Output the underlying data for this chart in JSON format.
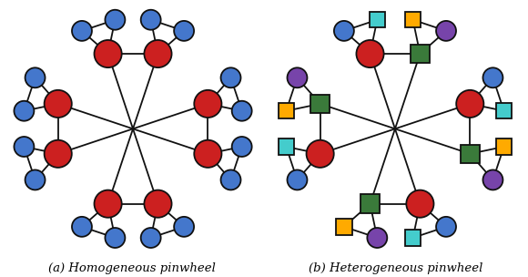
{
  "fig_width": 5.8,
  "fig_height": 3.04,
  "dpi": 100,
  "background": "#ffffff",
  "caption_a": "(a) Homogeneous pinwheel",
  "caption_b": "(b) Heterogeneous pinwheel",
  "red": "#cc2020",
  "blue": "#4477cc",
  "green": "#3a7a3a",
  "purple": "#7744aa",
  "cyan": "#44cccc",
  "orange": "#ffaa00",
  "node_edge": "#111111",
  "edge_color": "#111111",
  "edge_lw": 1.3,
  "hub_r": 0.055,
  "leaf_r": 0.04,
  "sq_size": 0.075
}
